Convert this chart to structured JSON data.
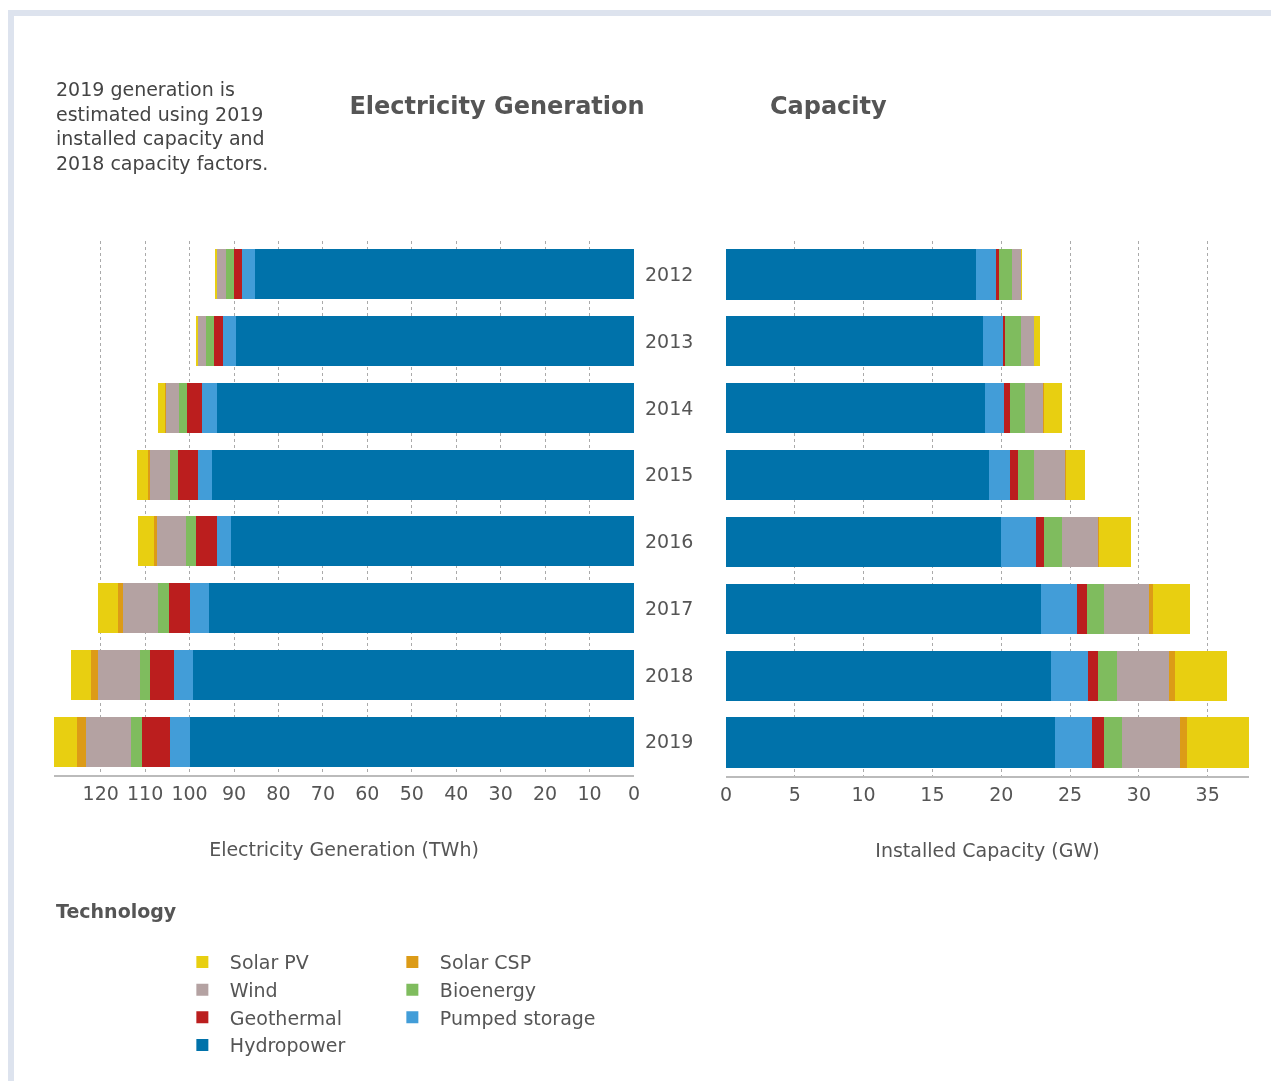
{
  "chart_data": [
    {
      "type": "bar",
      "orientation": "horizontal",
      "stacked": true,
      "title": "Electricity Generation",
      "xlabel": "Electricity Generation (TWh)",
      "legend_title": "Technology",
      "legend": "bottom",
      "grid": "x",
      "annotations": [
        "2019 generation is estimated using 2019 installed capacity and 2018 capacity factors."
      ],
      "categories": [
        "2012",
        "2013",
        "2014",
        "2015",
        "2016",
        "2017",
        "2018",
        "2019"
      ],
      "xlim": [
        130.5,
        0
      ],
      "xticks": [
        120,
        110,
        100,
        90,
        80,
        70,
        60,
        50,
        40,
        30,
        20,
        10,
        0
      ],
      "series": [
        {
          "name": "Hydropower",
          "color": "#0072aa",
          "values": [
            85.2,
            89.6,
            93.9,
            95.0,
            90.7,
            95.6,
            99.2,
            99.9
          ]
        },
        {
          "name": "Pumped storage",
          "color": "#429dd8",
          "values": [
            3.1,
            2.9,
            3.3,
            3.1,
            3.2,
            4.3,
            4.4,
            4.6
          ]
        },
        {
          "name": "Geothermal",
          "color": "#bb1e1e",
          "values": [
            1.6,
            2.0,
            3.3,
            4.4,
            4.6,
            4.8,
            5.4,
            6.2
          ]
        },
        {
          "name": "Bioenergy",
          "color": "#7fbc5e",
          "values": [
            2.0,
            1.8,
            1.8,
            2.0,
            2.2,
            2.3,
            2.2,
            2.5
          ]
        },
        {
          "name": "Wind",
          "color": "#b4a2a2",
          "values": [
            1.9,
            1.8,
            2.9,
            4.5,
            6.7,
            8.0,
            9.5,
            10.2
          ]
        },
        {
          "name": "Solar CSP",
          "color": "#dc9b17",
          "values": [
            0.1,
            0,
            0.4,
            0.4,
            0.7,
            1.1,
            1.4,
            2.0
          ]
        },
        {
          "name": "Solar PV",
          "color": "#e8cf11",
          "values": [
            0.4,
            0.4,
            1.6,
            2.5,
            3.5,
            4.4,
            4.6,
            5.1
          ]
        }
      ]
    },
    {
      "type": "bar",
      "orientation": "horizontal",
      "stacked": true,
      "title": "Capacity",
      "xlabel": "Installed Capacity (GW)",
      "grid": "x",
      "tick_labels": "x",
      "categories": [
        "2012",
        "2013",
        "2014",
        "2015",
        "2016",
        "2017",
        "2018",
        "2019"
      ],
      "xlim": [
        0,
        38
      ],
      "xticks": [
        0,
        5,
        10,
        15,
        20,
        25,
        30,
        35
      ],
      "series": [
        {
          "color": "#0072aa",
          "values": [
            18.2,
            18.7,
            18.8,
            19.1,
            20.0,
            22.9,
            23.6,
            23.9
          ]
        },
        {
          "color": "#429dd8",
          "values": [
            1.4,
            1.4,
            1.4,
            1.5,
            2.5,
            2.6,
            2.7,
            2.7
          ]
        },
        {
          "color": "#bb1e1e",
          "values": [
            0.2,
            0.2,
            0.4,
            0.6,
            0.6,
            0.7,
            0.7,
            0.9
          ]
        },
        {
          "color": "#7fbc5e",
          "values": [
            1.0,
            1.1,
            1.1,
            1.2,
            1.3,
            1.3,
            1.4,
            1.3
          ]
        },
        {
          "color": "#b4a2a2",
          "values": [
            0.6,
            1.0,
            1.3,
            2.2,
            2.6,
            3.2,
            3.8,
            4.2
          ]
        },
        {
          "color": "#dc9b17",
          "values": [
            0,
            0,
            0.1,
            0.1,
            0.1,
            0.3,
            0.4,
            0.5
          ]
        },
        {
          "color": "#e8cf11",
          "values": [
            0.1,
            0.4,
            1.3,
            1.4,
            2.3,
            2.7,
            3.8,
            4.6
          ]
        }
      ]
    }
  ]
}
